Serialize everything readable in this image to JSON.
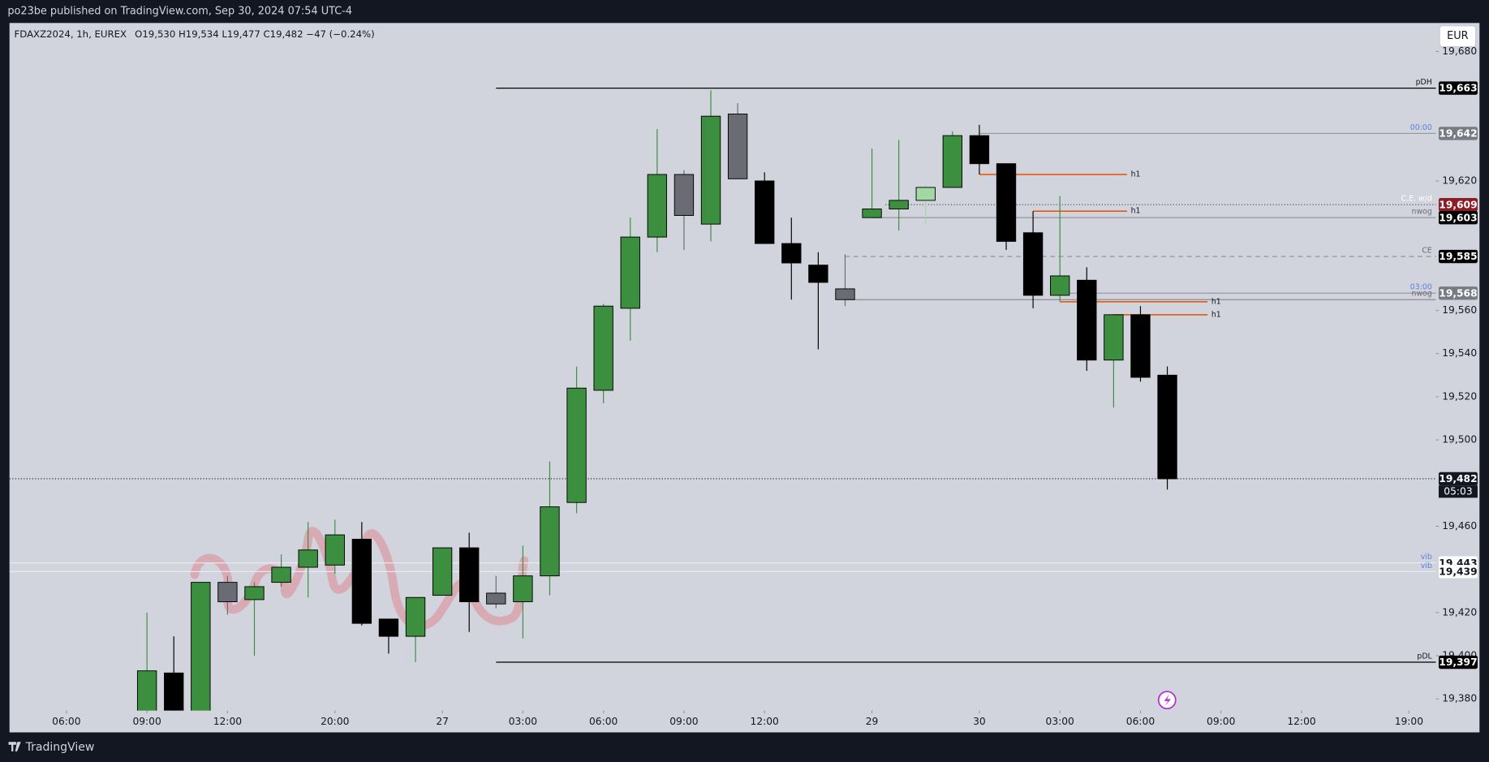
{
  "header": {
    "published": "po23be published on TradingView.com, Sep 30, 2024 07:54 UTC-4",
    "symbol": "FDAXZ2024, 1h, EUREX",
    "ohlc": "O19,530 H19,534 L19,477 C19,482 −47 (−0.24%)",
    "currency": "EUR",
    "brand": "TradingView"
  },
  "chart_data": {
    "type": "candlestick",
    "x": [
      3,
      4,
      5,
      6,
      7,
      8,
      9,
      10,
      11,
      12,
      13,
      14,
      15,
      16,
      17,
      18,
      19,
      20,
      21,
      22,
      23,
      24,
      25,
      26,
      27,
      28,
      29,
      30,
      31,
      32,
      33,
      34,
      35,
      36,
      37,
      38,
      39,
      40,
      41
    ],
    "open": [
      19368,
      19392,
      19368,
      19434,
      19426,
      19434,
      19441,
      19442,
      19454,
      19417,
      19409,
      19428,
      19450,
      19429,
      19425,
      19437,
      19471,
      19523,
      19561,
      19594,
      19623,
      19600,
      19651,
      19620,
      19591,
      19581,
      19570,
      19603,
      19607,
      19611,
      19617,
      19641,
      19628,
      19596,
      19567,
      19574,
      19537,
      19558,
      19530
    ],
    "high": [
      19420,
      19409,
      19434,
      19437,
      19434,
      19447,
      19462,
      19463,
      19462,
      19417,
      19427,
      19450,
      19457,
      19437,
      19451,
      19490,
      19534,
      19563,
      19603,
      19644,
      19625,
      19662,
      19656,
      19624,
      19603,
      19587,
      19586,
      19635,
      19639,
      19618,
      19643,
      19646,
      19628,
      19606,
      19613,
      19580,
      19558,
      19562,
      19534
    ],
    "low": [
      19365,
      19365,
      19365,
      19419,
      19400,
      19432,
      19427,
      19438,
      19414,
      19401,
      19397,
      19428,
      19411,
      19422,
      19408,
      19428,
      19466,
      19517,
      19546,
      19587,
      19588,
      19592,
      19621,
      19591,
      19565,
      19542,
      19562,
      19603,
      19597,
      19600,
      19617,
      19623,
      19588,
      19561,
      19564,
      19532,
      19515,
      19527,
      19477
    ],
    "close": [
      19393,
      19368,
      19434,
      19425,
      19432,
      19441,
      19449,
      19456,
      19415,
      19409,
      19427,
      19450,
      19425,
      19424,
      19437,
      19469,
      19524,
      19562,
      19594,
      19623,
      19604,
      19650,
      19621,
      19591,
      19582,
      19573,
      19565,
      19607,
      19611,
      19617,
      19641,
      19628,
      19592,
      19567,
      19576,
      19537,
      19558,
      19529,
      19482
    ],
    "colors": [
      "#3b8f3f",
      "#000000",
      "#3b8f3f",
      "#6a6b75",
      "#3b8f3f",
      "#3b8f3f",
      "#3b8f3f",
      "#3b8f3f",
      "#000000",
      "#000000",
      "#3b8f3f",
      "#3b8f3f",
      "#000000",
      "#6a6b75",
      "#3b8f3f",
      "#3b8f3f",
      "#3b8f3f",
      "#3b8f3f",
      "#3b8f3f",
      "#3b8f3f",
      "#6a6b75",
      "#3b8f3f",
      "#6a6b75",
      "#000000",
      "#000000",
      "#000000",
      "#6a6b75",
      "#3b8f3f",
      "#3b8f3f",
      "#a3d7a4",
      "#3b8f3f",
      "#000000",
      "#000000",
      "#000000",
      "#3b8f3f",
      "#000000",
      "#3b8f3f",
      "#000000",
      "#000000"
    ],
    "xlim": [
      -2.12,
      51
    ],
    "xticks": [
      {
        "value": 0,
        "label": "06:00"
      },
      {
        "value": 3,
        "label": "09:00"
      },
      {
        "value": 6,
        "label": "12:00"
      },
      {
        "value": 10,
        "label": "20:00"
      },
      {
        "value": 14,
        "label": "27"
      },
      {
        "value": 17,
        "label": "03:00"
      },
      {
        "value": 20,
        "label": "06:00"
      },
      {
        "value": 23,
        "label": "09:00"
      },
      {
        "value": 26,
        "label": "12:00"
      },
      {
        "value": 30,
        "label": "29"
      },
      {
        "value": 34,
        "label": "30"
      },
      {
        "value": 37,
        "label": "03:00"
      },
      {
        "value": 40,
        "label": "06:00"
      },
      {
        "value": 43,
        "label": "09:00"
      },
      {
        "value": 46,
        "label": "12:00"
      },
      {
        "value": 50,
        "label": "19:00"
      }
    ],
    "ylim": [
      19374.6,
      19693.2
    ],
    "yticks": [
      {
        "value": 19680,
        "label": "19,680"
      },
      {
        "value": 19620,
        "label": "19,620"
      },
      {
        "value": 19560,
        "label": "19,560"
      },
      {
        "value": 19540,
        "label": "19,540"
      },
      {
        "value": 19520,
        "label": "19,520"
      },
      {
        "value": 19500,
        "label": "19,500"
      },
      {
        "value": 19460,
        "label": "19,460"
      },
      {
        "value": 19420,
        "label": "19,420"
      },
      {
        "value": 19400,
        "label": "19,400"
      },
      {
        "value": 19380,
        "label": "19,380"
      }
    ],
    "levels": [
      {
        "label": "pDH",
        "price": 19663,
        "price_label": "19,663",
        "from": 16,
        "color": "#000000",
        "style": "solid",
        "tag_color": "#000000",
        "tag_text": "#ffffff",
        "label_color": "#131722"
      },
      {
        "label": "00:00",
        "price": 19642,
        "price_label": "19,642",
        "from": 34,
        "color": "#9598a1",
        "style": "solid",
        "tag_color": "#787b86",
        "tag_text": "#ffffff",
        "label_color": "#5b7fe0"
      },
      {
        "label": "C.E. w/d",
        "price": 19609,
        "price_label": "19,609",
        "from": 30.5,
        "color": "#434651",
        "style": "dotted",
        "tag_color": "#8e1c24",
        "tag_text": "#ffffff",
        "label_color": "#ffffff"
      },
      {
        "label": "nwog",
        "price": 19603,
        "price_label": "19,603",
        "from": 30,
        "color": "#8a8d96",
        "style": "solid",
        "tag_color": "#000000",
        "tag_text": "#ffffff",
        "label_color": "#6a6d78"
      },
      {
        "label": "CE",
        "price": 19585,
        "price_label": "19,585",
        "from": 29,
        "color": "#8a8d96",
        "style": "dashed",
        "tag_color": "#000000",
        "tag_text": "#ffffff",
        "label_color": "#6a6d78"
      },
      {
        "label": "03:00",
        "price": 19568,
        "price_label": "19,568",
        "from": 37,
        "color": "#9598a1",
        "style": "solid",
        "tag_color": "#787b86",
        "tag_text": "#ffffff",
        "label_color": "#5b7fe0"
      },
      {
        "label": "nwog",
        "price": 19565,
        "from": 29,
        "color": "#8a8d96",
        "style": "solid",
        "label_color": "#6a6d78"
      },
      {
        "label": "vib",
        "price": 19443,
        "price_label": "19,443",
        "from": -2.12,
        "color": "#eceef3",
        "style": "solid",
        "tag_color": "#ffffff",
        "tag_text": "#131722",
        "label_color": "#5b7fe0"
      },
      {
        "label": "vib",
        "price": 19439,
        "price_label": "19,439",
        "from": -2.12,
        "color": "#eceef3",
        "style": "solid",
        "tag_color": "#ffffff",
        "tag_text": "#131722",
        "label_color": "#5b7fe0"
      },
      {
        "label": "pDL",
        "price": 19397,
        "price_label": "19,397",
        "from": 16,
        "color": "#000000",
        "style": "solid",
        "tag_color": "#000000",
        "tag_text": "#ffffff",
        "label_color": "#131722"
      }
    ],
    "h1_color": "#e65100",
    "h1_lines": [
      {
        "label": "h1",
        "price": 19623,
        "from": 34,
        "to": 39.5
      },
      {
        "label": "h1",
        "price": 19606,
        "from": 36,
        "to": 39.5
      },
      {
        "label": "h1",
        "price": 19564,
        "from": 37,
        "to": 42.5
      },
      {
        "label": "h1",
        "price": 19558,
        "from": 39,
        "to": 42.5
      }
    ],
    "last_price": {
      "price": 19482,
      "price_label": "19,482",
      "countdown": "05:03",
      "color": "#131722"
    }
  }
}
